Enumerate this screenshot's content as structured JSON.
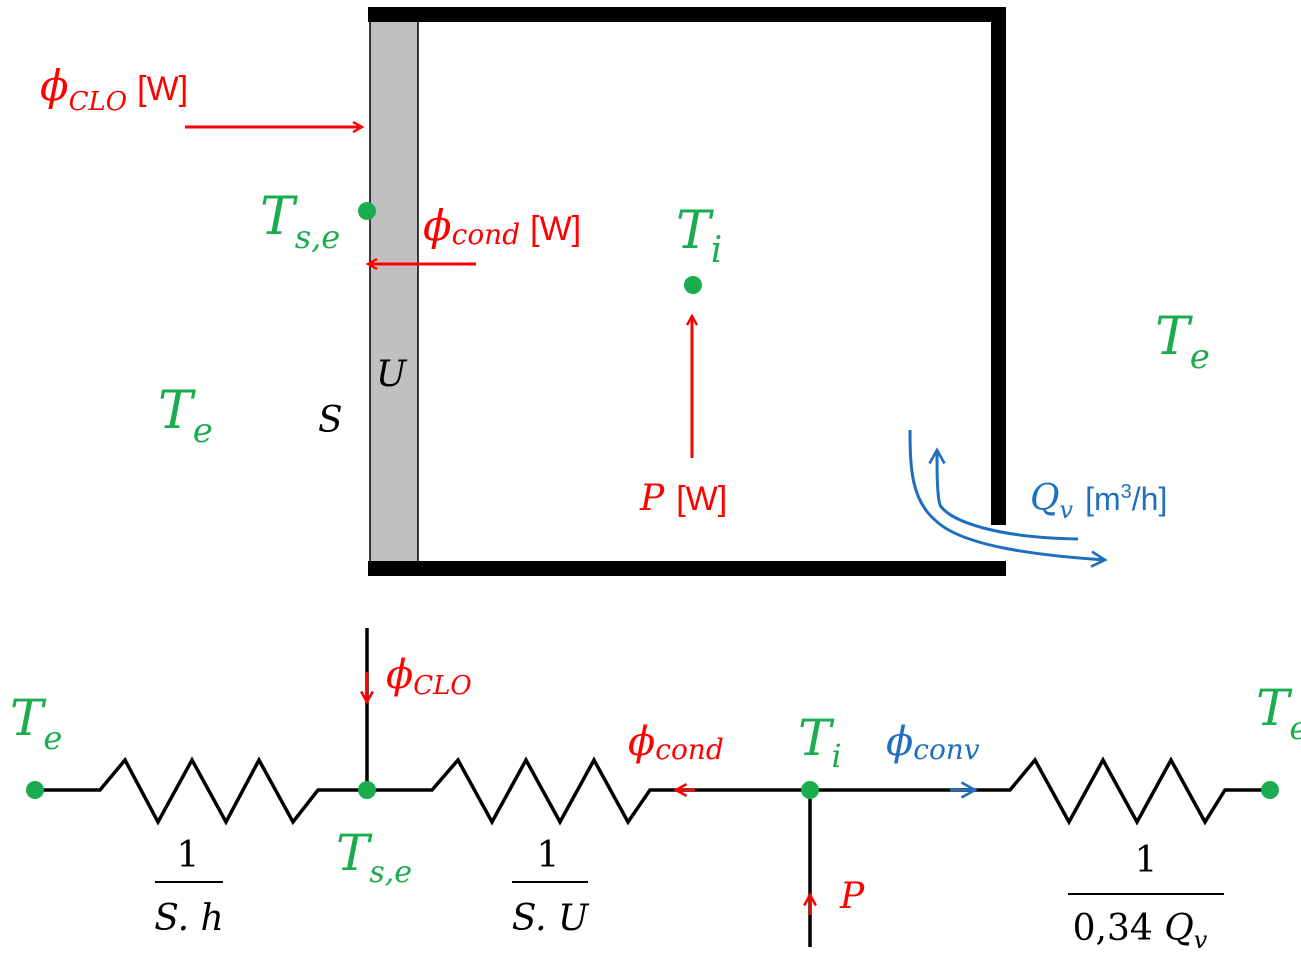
{
  "colors": {
    "red": "#ff0000",
    "green": "#1aac4e",
    "blue": "#1f6fc0",
    "black": "#000000",
    "wall_fill": "#c0c0c0"
  },
  "room": {
    "phi_clo": {
      "symbol": "ϕ",
      "sub": "CLO",
      "unit": "[W]"
    },
    "phi_cond": {
      "symbol": "ϕ",
      "sub": "cond",
      "unit": "[W]"
    },
    "t_se": {
      "symbol": "T",
      "sub": "s,e"
    },
    "t_i": {
      "symbol": "T",
      "sub": "i"
    },
    "t_e_left": {
      "symbol": "T",
      "sub": "e"
    },
    "t_e_right": {
      "symbol": "T",
      "sub": "e"
    },
    "u_label": "U",
    "s_label": "S",
    "power": {
      "symbol": "P",
      "unit": "[W]"
    },
    "qv": {
      "symbol": "Q",
      "sub": "v",
      "unit_pre": "[m",
      "unit_sup": "3",
      "unit_post": "/h]"
    }
  },
  "circuit": {
    "t_e_left": {
      "symbol": "T",
      "sub": "e"
    },
    "t_e_right": {
      "symbol": "T",
      "sub": "e"
    },
    "t_se": {
      "symbol": "T",
      "sub": "s,e"
    },
    "t_i": {
      "symbol": "T",
      "sub": "i"
    },
    "phi_clo": {
      "symbol": "ϕ",
      "sub": "CLO"
    },
    "phi_cond": {
      "symbol": "ϕ",
      "sub": "cond"
    },
    "phi_conv": {
      "symbol": "ϕ",
      "sub": "conv"
    },
    "power": "P",
    "r1": {
      "num": "1",
      "den": "S. h"
    },
    "r2": {
      "num": "1",
      "den": "S. U"
    },
    "r3": {
      "num": "1",
      "den_coef": "0,34 ",
      "den_sym": "Q",
      "den_sub": "v"
    }
  }
}
